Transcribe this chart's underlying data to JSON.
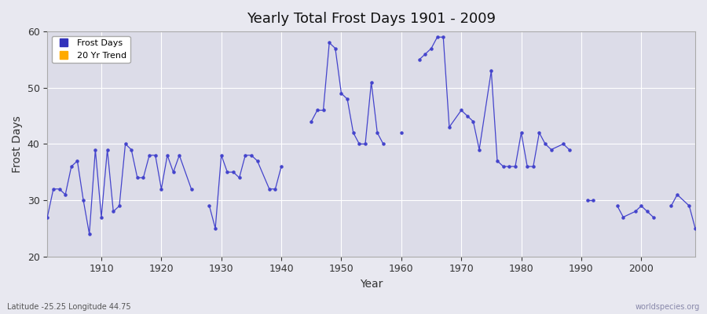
{
  "title": "Yearly Total Frost Days 1901 - 2009",
  "xlabel": "Year",
  "ylabel": "Frost Days",
  "xlim": [
    1901,
    2009
  ],
  "ylim": [
    20,
    60
  ],
  "yticks": [
    20,
    30,
    40,
    50,
    60
  ],
  "xticks": [
    1910,
    1920,
    1930,
    1940,
    1950,
    1960,
    1970,
    1980,
    1990,
    2000
  ],
  "line_color": "#4444cc",
  "scatter_color": "#4444cc",
  "bg_color": "#e8e8f0",
  "plot_bg": "#dcdce8",
  "grid_color": "#ffffff",
  "legend_labels": [
    "Frost Days",
    "20 Yr Trend"
  ],
  "legend_colors": [
    "#3333bb",
    "#ffaa00"
  ],
  "subtitle": "Latitude -25.25 Longitude 44.75",
  "watermark": "worldspecies.org",
  "frost_days": {
    "1901": 27,
    "1902": 32,
    "1903": 32,
    "1904": 31,
    "1905": 36,
    "1906": 37,
    "1907": 30,
    "1908": 24,
    "1909": 39,
    "1910": 27,
    "1911": 39,
    "1912": 28,
    "1913": 29,
    "1914": 40,
    "1915": 39,
    "1916": 34,
    "1917": 34,
    "1918": 38,
    "1919": 38,
    "1920": 32,
    "1921": 38,
    "1922": 35,
    "1923": 38,
    "1925": 32,
    "1928": 29,
    "1929": 25,
    "1930": 38,
    "1931": 35,
    "1932": 35,
    "1933": 34,
    "1934": 38,
    "1935": 38,
    "1936": 37,
    "1938": 32,
    "1939": 32,
    "1940": 36,
    "1945": 44,
    "1946": 46,
    "1947": 46,
    "1948": 58,
    "1949": 57,
    "1950": 49,
    "1951": 48,
    "1952": 42,
    "1953": 40,
    "1954": 40,
    "1955": 51,
    "1956": 42,
    "1957": 40,
    "1960": 42,
    "1963": 55,
    "1964": 56,
    "1965": 57,
    "1966": 59,
    "1967": 59,
    "1968": 43,
    "1970": 46,
    "1971": 45,
    "1972": 44,
    "1973": 39,
    "1975": 53,
    "1976": 37,
    "1977": 36,
    "1978": 36,
    "1979": 36,
    "1980": 42,
    "1981": 36,
    "1982": 36,
    "1983": 42,
    "1984": 40,
    "1985": 39,
    "1987": 40,
    "1988": 39,
    "1991": 30,
    "1992": 30,
    "1996": 29,
    "1997": 27,
    "1999": 28,
    "2000": 29,
    "2001": 28,
    "2002": 27,
    "2005": 29,
    "2006": 31,
    "2008": 29,
    "2009": 25
  }
}
